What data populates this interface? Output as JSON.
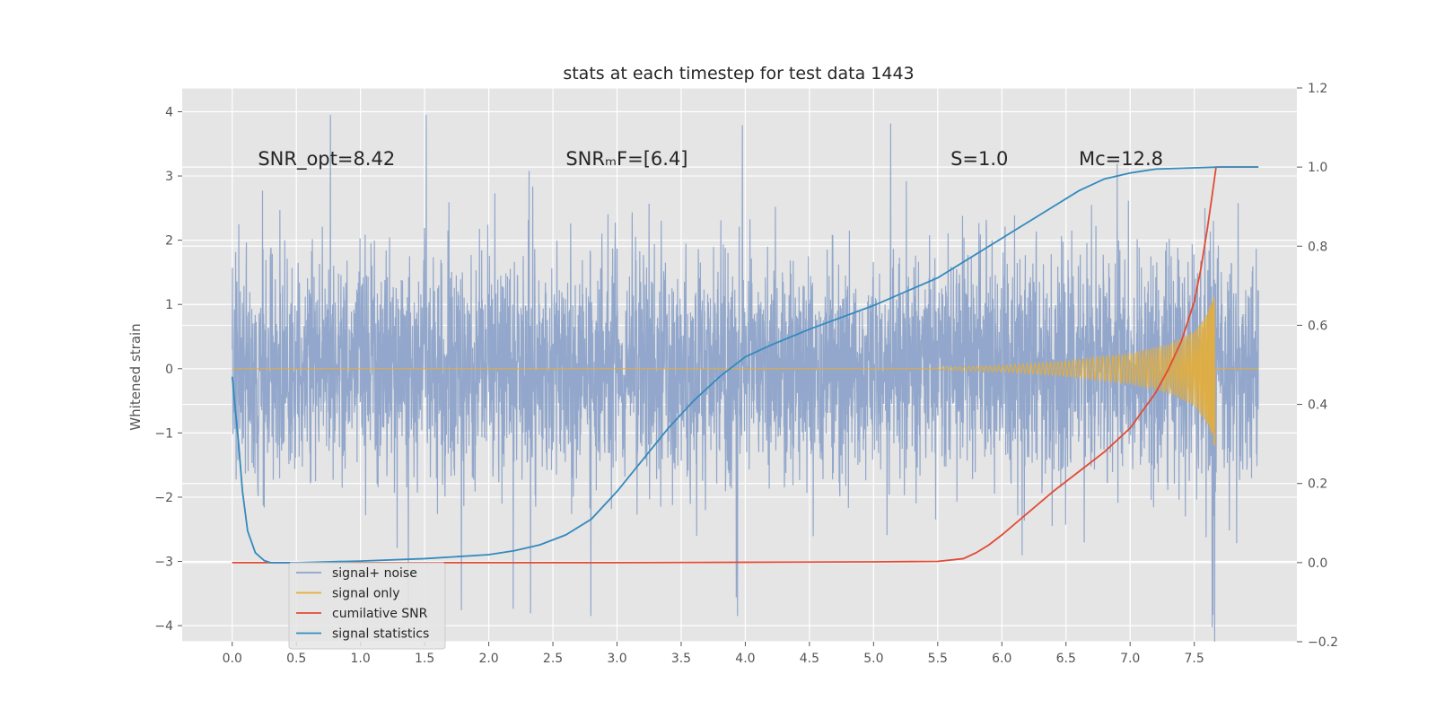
{
  "chart_data": {
    "type": "line",
    "title": "stats at each timestep for test data 1443",
    "ylabel": "Whitened strain",
    "xlim": [
      -0.39,
      8.3
    ],
    "ylim": [
      -4.25,
      4.37
    ],
    "y2lim": [
      -0.2,
      1.2
    ],
    "xticks": [
      "0.0",
      "0.5",
      "1.0",
      "1.5",
      "2.0",
      "2.5",
      "3.0",
      "3.5",
      "4.0",
      "4.5",
      "5.0",
      "5.5",
      "6.0",
      "6.5",
      "7.0",
      "7.5"
    ],
    "yticks": [
      "−4",
      "−3",
      "−2",
      "−1",
      "0",
      "1",
      "2",
      "3",
      "4"
    ],
    "y2ticks": [
      "−0.2",
      "0.0",
      "0.2",
      "0.4",
      "0.6",
      "0.8",
      "1.0",
      "1.2"
    ],
    "grid": true,
    "legend_position": "lower-left",
    "annotations": [
      {
        "id": "snr-opt",
        "text": "SNR_opt=8.42",
        "x": 0.2,
        "y": 3.17
      },
      {
        "id": "snr-mf",
        "text": "SNRₘF=[6.4]",
        "x": 2.6,
        "y": 3.17
      },
      {
        "id": "s-value",
        "text": "S=1.0",
        "x": 5.6,
        "y": 3.17
      },
      {
        "id": "mc-value",
        "text": "Mc=12.8",
        "x": 6.6,
        "y": 3.17
      }
    ],
    "series": [
      {
        "name": "signal+ noise",
        "axis": "left",
        "color": "#8da3c9",
        "t_end": 8.0,
        "amplitude_note": "noise band roughly ±2.2 with spikes to ±4"
      },
      {
        "name": "signal only",
        "axis": "left",
        "color": "#e5ae38",
        "t_end": 7.66,
        "envelope": {
          "t": [
            5.5,
            6.0,
            6.5,
            7.0,
            7.3,
            7.5,
            7.6,
            7.66
          ],
          "amp": [
            0.02,
            0.05,
            0.12,
            0.24,
            0.38,
            0.58,
            0.85,
            1.25
          ]
        }
      },
      {
        "name": "cumilative SNR",
        "axis": "right",
        "color": "#e24a33",
        "x": [
          0.0,
          1.0,
          2.0,
          3.0,
          4.0,
          5.0,
          5.5,
          5.7,
          5.8,
          5.9,
          6.0,
          6.2,
          6.4,
          6.6,
          6.8,
          7.0,
          7.2,
          7.3,
          7.4,
          7.5,
          7.55,
          7.6,
          7.64,
          7.67,
          7.8,
          8.0
        ],
        "y": [
          0.0,
          0.0,
          0.0,
          0.0,
          0.001,
          0.002,
          0.003,
          0.01,
          0.025,
          0.045,
          0.07,
          0.125,
          0.18,
          0.23,
          0.28,
          0.34,
          0.43,
          0.49,
          0.56,
          0.66,
          0.74,
          0.84,
          0.93,
          1.0,
          1.0,
          1.0
        ]
      },
      {
        "name": "signal statistics",
        "axis": "right",
        "color": "#348abd",
        "x": [
          0.0,
          0.05,
          0.08,
          0.12,
          0.18,
          0.25,
          0.3,
          0.5,
          1.0,
          1.5,
          2.0,
          2.2,
          2.4,
          2.6,
          2.8,
          3.0,
          3.2,
          3.4,
          3.6,
          3.8,
          4.0,
          4.2,
          4.5,
          5.0,
          5.5,
          6.0,
          6.2,
          6.4,
          6.6,
          6.8,
          7.0,
          7.2,
          7.5,
          7.7,
          8.0
        ],
        "y": [
          0.47,
          0.3,
          0.18,
          0.08,
          0.025,
          0.005,
          0.0,
          0.0,
          0.004,
          0.01,
          0.02,
          0.03,
          0.045,
          0.07,
          0.11,
          0.18,
          0.26,
          0.34,
          0.41,
          0.47,
          0.52,
          0.55,
          0.59,
          0.65,
          0.72,
          0.82,
          0.86,
          0.9,
          0.94,
          0.97,
          0.985,
          0.995,
          0.998,
          1.0,
          1.0
        ]
      }
    ]
  }
}
